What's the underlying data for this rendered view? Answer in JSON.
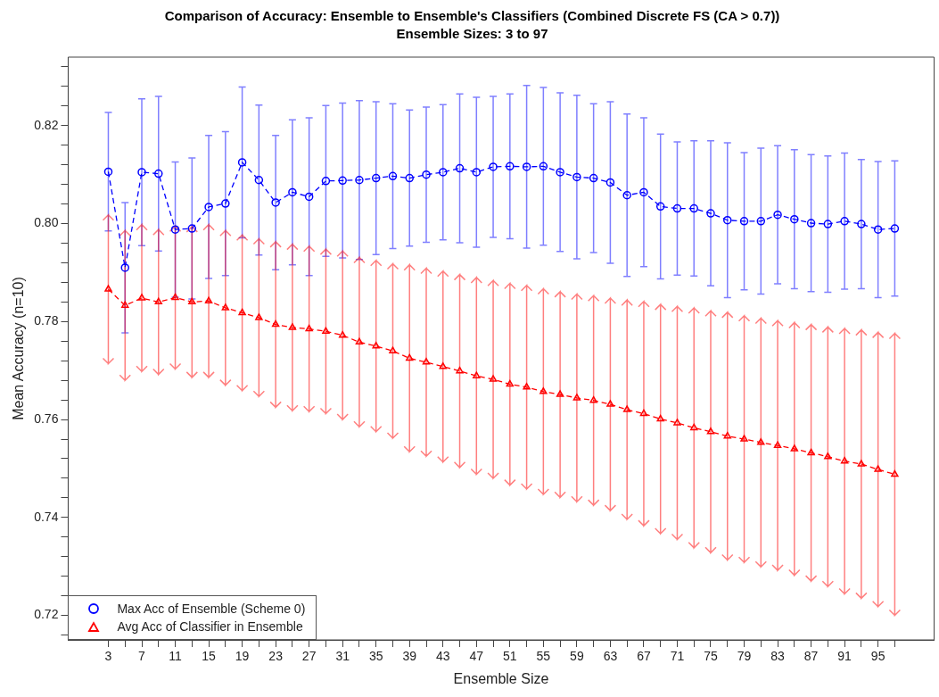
{
  "chart_data": {
    "type": "line",
    "title": "Comparison of Accuracy: Ensemble to Ensemble's Classifiers (Combined Discrete FS (CA > 0.7))",
    "subtitle": "Ensemble Sizes: 3 to 97",
    "xlabel": "Ensemble Size",
    "ylabel": "Mean Accuracy (n=10)",
    "x": [
      3,
      5,
      7,
      9,
      11,
      13,
      15,
      17,
      19,
      21,
      23,
      25,
      27,
      29,
      31,
      33,
      35,
      37,
      39,
      41,
      43,
      45,
      47,
      49,
      51,
      53,
      55,
      57,
      59,
      61,
      63,
      65,
      67,
      69,
      71,
      73,
      75,
      77,
      79,
      81,
      83,
      85,
      87,
      89,
      91,
      93,
      95,
      97
    ],
    "series": [
      {
        "name": "Max Acc of Ensemble (Scheme 0)",
        "color": "#0000ff",
        "marker": "circle",
        "values": [
          0.8106,
          0.791,
          0.8105,
          0.8102,
          0.7988,
          0.799,
          0.8034,
          0.8041,
          0.8125,
          0.8089,
          0.8043,
          0.8064,
          0.8055,
          0.8087,
          0.8088,
          0.8089,
          0.8093,
          0.8097,
          0.8093,
          0.81,
          0.8105,
          0.8113,
          0.8105,
          0.8116,
          0.8117,
          0.8116,
          0.8117,
          0.8105,
          0.8095,
          0.8093,
          0.8084,
          0.8058,
          0.8064,
          0.8035,
          0.8031,
          0.8031,
          0.8021,
          0.8007,
          0.8005,
          0.8005,
          0.8018,
          0.8009,
          0.8001,
          0.7999,
          0.8005,
          0.7999,
          0.7988,
          0.799
        ],
        "errors": [
          0.0121,
          0.0133,
          0.015,
          0.0158,
          0.0138,
          0.0144,
          0.0146,
          0.0147,
          0.0154,
          0.0153,
          0.0137,
          0.0148,
          0.0161,
          0.0154,
          0.0158,
          0.0162,
          0.0156,
          0.0148,
          0.0139,
          0.0138,
          0.0138,
          0.0152,
          0.0153,
          0.0144,
          0.0148,
          0.0166,
          0.0161,
          0.0162,
          0.0167,
          0.0152,
          0.0165,
          0.0166,
          0.0152,
          0.0148,
          0.0136,
          0.0138,
          0.0148,
          0.0158,
          0.014,
          0.0149,
          0.0141,
          0.0142,
          0.014,
          0.0139,
          0.0139,
          0.0132,
          0.0139,
          0.0138
        ]
      },
      {
        "name": "Avg Acc of Classifier in Ensemble",
        "color": "#ff0000",
        "marker": "triangle",
        "values": [
          0.7866,
          0.7833,
          0.7848,
          0.784,
          0.7849,
          0.784,
          0.7842,
          0.7828,
          0.7818,
          0.7808,
          0.7794,
          0.7788,
          0.7785,
          0.778,
          0.7772,
          0.7758,
          0.775,
          0.774,
          0.7725,
          0.7717,
          0.7708,
          0.7699,
          0.7689,
          0.7682,
          0.7672,
          0.7666,
          0.7657,
          0.7651,
          0.7644,
          0.7639,
          0.7631,
          0.762,
          0.7612,
          0.7601,
          0.7593,
          0.7583,
          0.7575,
          0.7566,
          0.756,
          0.7553,
          0.7547,
          0.754,
          0.7532,
          0.7524,
          0.7515,
          0.7509,
          0.7498,
          0.7488
        ],
        "errors": [
          0.0152,
          0.0153,
          0.015,
          0.0148,
          0.0146,
          0.0154,
          0.0156,
          0.0158,
          0.0159,
          0.0161,
          0.0169,
          0.017,
          0.0169,
          0.0168,
          0.0172,
          0.0173,
          0.0175,
          0.0178,
          0.0191,
          0.0192,
          0.0195,
          0.0197,
          0.0201,
          0.0202,
          0.0206,
          0.0208,
          0.021,
          0.021,
          0.0212,
          0.0214,
          0.0217,
          0.0224,
          0.0229,
          0.0234,
          0.0238,
          0.0245,
          0.0247,
          0.0253,
          0.0252,
          0.0254,
          0.0255,
          0.0258,
          0.0262,
          0.0265,
          0.0271,
          0.0274,
          0.028,
          0.0288
        ]
      }
    ],
    "xlim": [
      -1.8,
      101.7
    ],
    "xticks": [
      3,
      {
        "value": 5,
        "label": null
      },
      7,
      {
        "value": 9,
        "label": null
      },
      11,
      {
        "value": 13,
        "label": null
      },
      15,
      {
        "value": 17,
        "label": null
      },
      19,
      {
        "value": 21,
        "label": null
      },
      23,
      {
        "value": 25,
        "label": null
      },
      27,
      {
        "value": 29,
        "label": null
      },
      31,
      {
        "value": 33,
        "label": null
      },
      35,
      {
        "value": 37,
        "label": null
      },
      39,
      {
        "value": 41,
        "label": null
      },
      43,
      {
        "value": 45,
        "label": null
      },
      47,
      {
        "value": 49,
        "label": null
      },
      51,
      {
        "value": 53,
        "label": null
      },
      55,
      {
        "value": 57,
        "label": null
      },
      59,
      {
        "value": 61,
        "label": null
      },
      63,
      {
        "value": 65,
        "label": null
      },
      67,
      {
        "value": 69,
        "label": null
      },
      71,
      {
        "value": 73,
        "label": null
      },
      75,
      {
        "value": 77,
        "label": null
      },
      79,
      {
        "value": 81,
        "label": null
      },
      83,
      {
        "value": 85,
        "label": null
      },
      87,
      {
        "value": 89,
        "label": null
      },
      91,
      {
        "value": 93,
        "label": null
      },
      95,
      {
        "value": 97,
        "label": null
      }
    ],
    "ylim": [
      0.715,
      0.834
    ],
    "yticks": [
      {
        "value": 0.716,
        "label": null
      },
      0.72,
      {
        "value": 0.724,
        "label": null
      },
      {
        "value": 0.728,
        "label": null
      },
      {
        "value": 0.732,
        "label": null
      },
      {
        "value": 0.736,
        "label": null
      },
      0.74,
      {
        "value": 0.744,
        "label": null
      },
      {
        "value": 0.748,
        "label": null
      },
      {
        "value": 0.752,
        "label": null
      },
      {
        "value": 0.756,
        "label": null
      },
      0.76,
      {
        "value": 0.764,
        "label": null
      },
      {
        "value": 0.768,
        "label": null
      },
      {
        "value": 0.772,
        "label": null
      },
      {
        "value": 0.776,
        "label": null
      },
      0.78,
      {
        "value": 0.784,
        "label": null
      },
      {
        "value": 0.788,
        "label": null
      },
      {
        "value": 0.792,
        "label": null
      },
      {
        "value": 0.796,
        "label": null
      },
      {
        "value": 0.8,
        "label": "0.80"
      },
      {
        "value": 0.804,
        "label": null
      },
      {
        "value": 0.808,
        "label": null
      },
      {
        "value": 0.812,
        "label": null
      },
      {
        "value": 0.816,
        "label": null
      },
      0.82,
      {
        "value": 0.824,
        "label": null
      },
      {
        "value": 0.828,
        "label": null
      },
      {
        "value": 0.832,
        "label": null
      }
    ],
    "grid": false,
    "legend": "bottom left",
    "line_style": "dashed"
  }
}
